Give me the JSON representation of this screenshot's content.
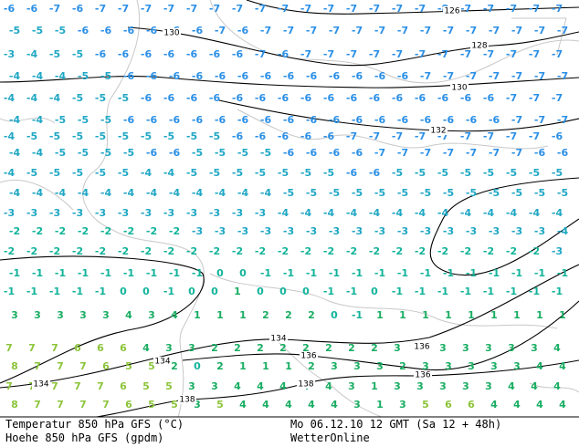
{
  "footer": {
    "left_line1": "Temperatur 850 hPa GFS (°C)",
    "left_line2": "Hoehe 850 hPa GFS (gpdm)",
    "right_line1": "Mo 06.12.10 12 GMT (Sa 12 + 48h)",
    "right_line2": "WetterOnline"
  },
  "temperature_grid": [
    [
      -6,
      -6,
      -7,
      -6,
      -7,
      -7,
      -7,
      -7,
      -7,
      -7,
      -7,
      -7,
      -7,
      -7,
      -7,
      -7,
      -7,
      -7,
      -7,
      -8,
      -7,
      -7,
      -7,
      -7,
      -7
    ],
    [
      -5,
      -5,
      -5,
      -6,
      -6,
      -6,
      -6,
      -6,
      -6,
      -7,
      -6,
      -7,
      -7,
      -7,
      -7,
      -7,
      -7,
      -7,
      -7,
      -7,
      -7,
      -7,
      -7,
      -7,
      -7
    ],
    [
      -3,
      -4,
      -5,
      -5,
      -6,
      -6,
      -6,
      -6,
      -6,
      -6,
      -6,
      -7,
      -6,
      -7,
      -7,
      -7,
      -7,
      -7,
      -7,
      -7,
      -7,
      -7,
      -7,
      -7,
      -7
    ],
    [
      -4,
      -4,
      -4,
      -5,
      -5,
      -6,
      -6,
      -6,
      -6,
      -6,
      -6,
      -6,
      -6,
      -6,
      -6,
      -6,
      -6,
      -6,
      -7,
      -7,
      -7,
      -7,
      -7,
      -7,
      -7
    ],
    [
      -4,
      -4,
      -4,
      -5,
      -5,
      -5,
      -6,
      -6,
      -6,
      -6,
      -6,
      -6,
      -6,
      -6,
      -6,
      -6,
      -6,
      -6,
      -6,
      -6,
      -6,
      -6,
      -7,
      -7,
      -7
    ],
    [
      -4,
      -4,
      -5,
      -5,
      -5,
      -6,
      -6,
      -6,
      -6,
      -6,
      -6,
      -6,
      -6,
      -6,
      -6,
      -6,
      -6,
      -6,
      -6,
      -6,
      -6,
      -6,
      -7,
      -7,
      -7
    ],
    [
      -4,
      -5,
      -5,
      -5,
      -5,
      -5,
      -5,
      -5,
      -5,
      -5,
      -6,
      -6,
      -6,
      -6,
      -6,
      -7,
      -7,
      -7,
      -7,
      -7,
      -7,
      -7,
      -7,
      -7,
      -6
    ],
    [
      -4,
      -4,
      -5,
      -5,
      -5,
      -5,
      -6,
      -6,
      -5,
      -5,
      -5,
      -5,
      -6,
      -6,
      -6,
      -6,
      -7,
      -7,
      -7,
      -7,
      -7,
      -7,
      -7,
      -6,
      -6
    ],
    [
      -4,
      -5,
      -5,
      -5,
      -5,
      -5,
      -4,
      -4,
      -5,
      -5,
      -5,
      -5,
      -5,
      -5,
      -5,
      -6,
      -6,
      -5,
      -5,
      -5,
      -5,
      -5,
      -5,
      -5,
      -5
    ],
    [
      -4,
      -4,
      -4,
      -4,
      -4,
      -4,
      -4,
      -4,
      -4,
      -4,
      -4,
      -4,
      -5,
      -5,
      -5,
      -5,
      -5,
      -5,
      -5,
      -5,
      -5,
      -5,
      -5,
      -5,
      -5
    ],
    [
      -3,
      -3,
      -3,
      -3,
      -3,
      -3,
      -3,
      -3,
      -3,
      -3,
      -3,
      -3,
      -4,
      -4,
      -4,
      -4,
      -4,
      -4,
      -4,
      -4,
      -4,
      -4,
      -4,
      -4,
      -4
    ],
    [
      -2,
      -2,
      -2,
      -2,
      -2,
      -2,
      -2,
      -2,
      -3,
      -3,
      -3,
      -3,
      -3,
      -3,
      -3,
      -3,
      -3,
      -3,
      -3,
      -3,
      -3,
      -3,
      -3,
      -3,
      -4
    ],
    [
      -2,
      -2,
      -2,
      -2,
      -2,
      -2,
      -2,
      -2,
      -2,
      -2,
      -2,
      -2,
      -2,
      -2,
      -2,
      -2,
      -2,
      -2,
      -2,
      -2,
      -2,
      -2,
      -2,
      -2,
      -3
    ],
    [
      -1,
      -1,
      -1,
      -1,
      -1,
      -1,
      -1,
      -1,
      -1,
      0,
      0,
      -1,
      -1,
      -1,
      -1,
      -1,
      -1,
      -1,
      -1,
      -1,
      -1,
      -1,
      -1,
      -1,
      -1
    ],
    [
      -1,
      -1,
      -1,
      -1,
      -1,
      0,
      0,
      -1,
      0,
      0,
      1,
      0,
      0,
      0,
      -1,
      -1,
      0,
      -1,
      -1,
      -1,
      -1,
      -1,
      -1,
      -1,
      -1
    ],
    [
      3,
      3,
      3,
      3,
      3,
      4,
      3,
      4,
      1,
      1,
      1,
      2,
      2,
      2,
      0,
      -1,
      1,
      1,
      1,
      1,
      1,
      1,
      1,
      1,
      1
    ],
    [
      7,
      7,
      7,
      6,
      6,
      6,
      4,
      3,
      3,
      2,
      2,
      2,
      2,
      2,
      2,
      2,
      2,
      3,
      3,
      3,
      3,
      3,
      3,
      3,
      4
    ],
    [
      8,
      7,
      7,
      7,
      6,
      5,
      5,
      2,
      0,
      2,
      1,
      1,
      1,
      2,
      3,
      3,
      3,
      2,
      3,
      3,
      3,
      3,
      3,
      4,
      4
    ],
    [
      7,
      7,
      7,
      7,
      7,
      6,
      5,
      5,
      3,
      3,
      4,
      4,
      4,
      4,
      4,
      3,
      1,
      3,
      3,
      3,
      3,
      3,
      4,
      4,
      4
    ],
    [
      8,
      7,
      7,
      7,
      7,
      6,
      5,
      5,
      3,
      5,
      4,
      4,
      4,
      4,
      4,
      3,
      1,
      3,
      5,
      6,
      6,
      4,
      4,
      4,
      4
    ]
  ],
  "contour_labels": [
    126,
    128,
    130,
    130,
    132,
    134,
    134,
    134,
    136,
    136,
    136,
    138,
    138
  ]
}
